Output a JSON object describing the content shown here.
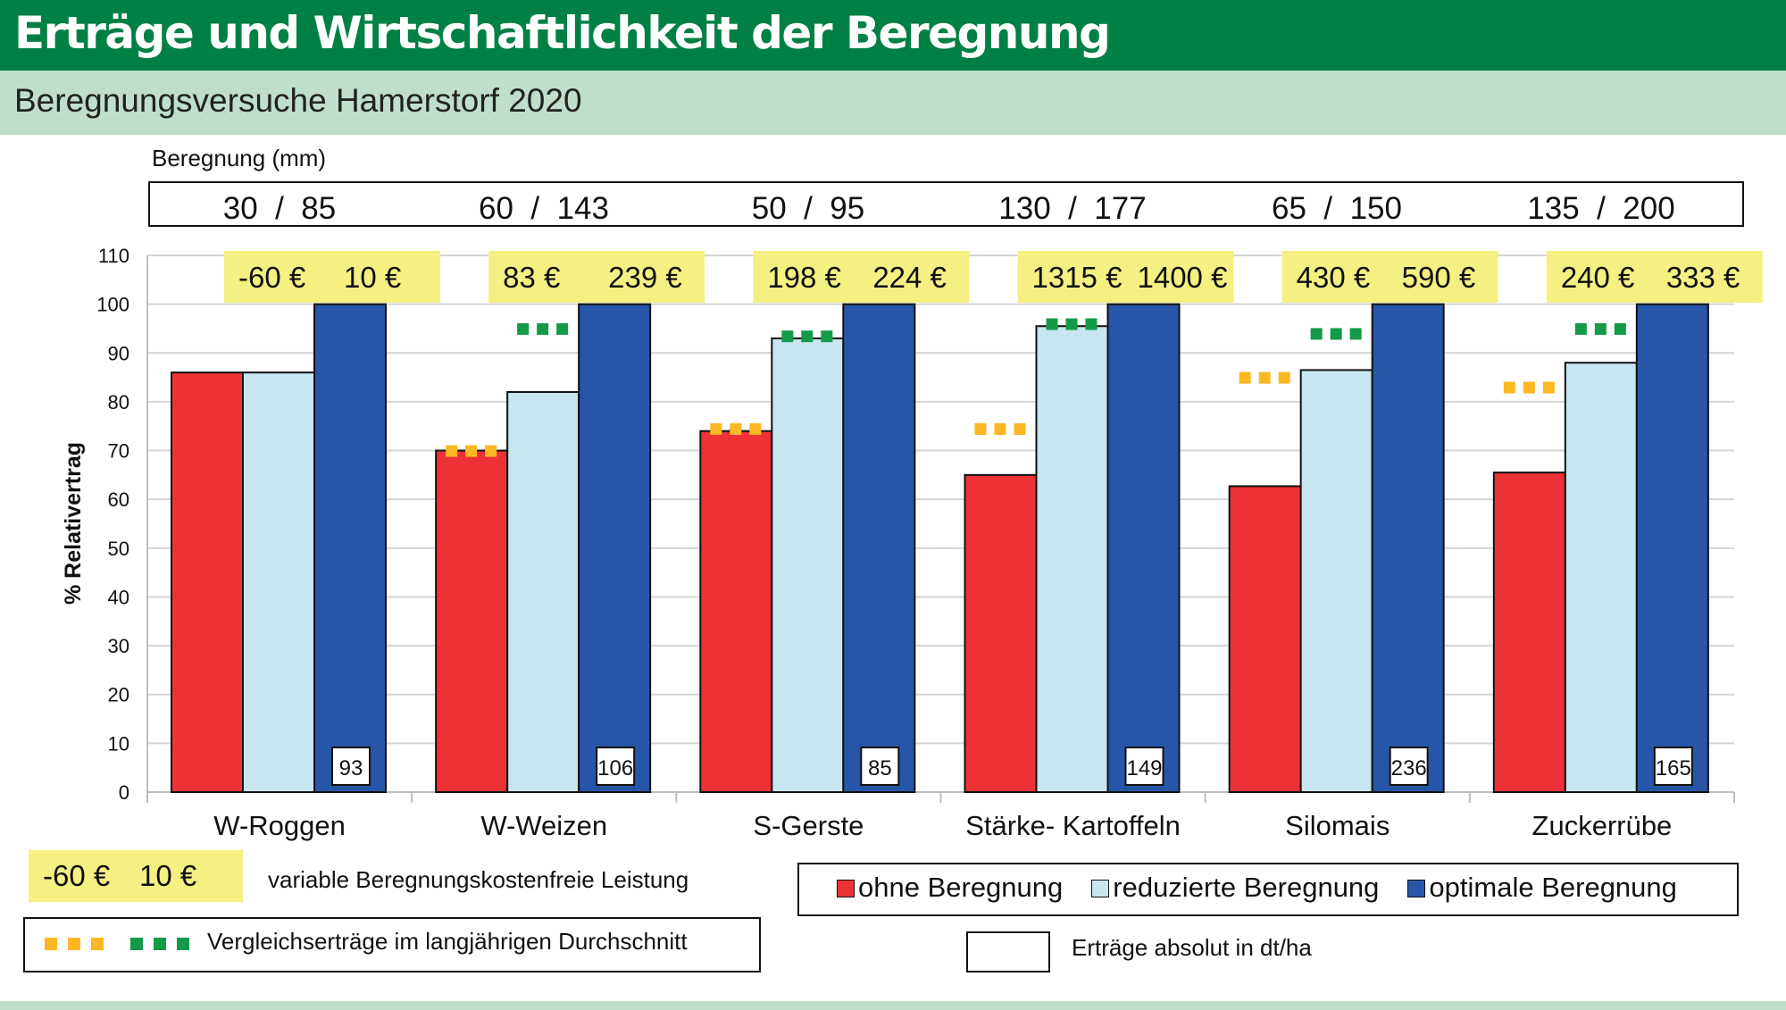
{
  "title": "Erträge und Wirtschaftlichkeit der Beregnung",
  "subtitle": "Beregnungsversuche Hamerstorf 2020",
  "beregnung_label": "Beregnung (mm)",
  "beregnung_values": [
    "30  /  85",
    "60  /  143",
    "50  /  95",
    "130  /  177",
    "65  /  150",
    "135  /  200"
  ],
  "legend": {
    "ohne": "ohne Beregnung",
    "reduziert": "reduzierte Beregnung",
    "optimal": "optimale Beregnung",
    "eur_example_a": "-60 €",
    "eur_example_b": "10 €",
    "eur_text": "variable Beregnungskostenfreie Leistung",
    "vergleich_text": "Vergleichserträge im langjährigen Durchschnitt",
    "absolut_text": "Erträge absolut in dt/ha"
  },
  "colors": {
    "ohne": "#ec3237",
    "reduziert": "#c8e6f0",
    "optimal": "#2756a8",
    "avg_ohne": "#fbb822",
    "avg_reduziert": "#149a48",
    "eur_bg": "#f4f082",
    "header": "#008045",
    "subheader": "#bfdfcc"
  },
  "chart_data": {
    "type": "bar",
    "ylabel": "% Relativertrag",
    "ylim": [
      0,
      110
    ],
    "yticks": [
      0,
      10,
      20,
      30,
      40,
      50,
      60,
      70,
      80,
      90,
      100,
      110
    ],
    "grid": true,
    "categories": [
      "W-Roggen",
      "W-Weizen",
      "S-Gerste",
      "Stärke- Kartoffeln",
      "Silomais",
      "Zuckerrübe"
    ],
    "series": [
      {
        "name": "ohne Beregnung",
        "values": [
          86,
          70,
          74,
          65,
          62.7,
          65.5
        ]
      },
      {
        "name": "reduzierte Beregnung",
        "values": [
          86,
          82,
          93,
          95.5,
          86.5,
          88
        ]
      },
      {
        "name": "optimale Beregnung",
        "values": [
          100,
          100,
          100,
          100,
          100,
          100
        ]
      }
    ],
    "absolute_yield": [
      "93",
      "106",
      "85",
      "149",
      "236",
      "165"
    ],
    "euro_reduziert": [
      "-60 €",
      "83 €",
      "198 €",
      "1315 €",
      "430 €",
      "240 €"
    ],
    "euro_optimal": [
      "10 €",
      "239 €",
      "224 €",
      "1400 €",
      "590 €",
      "333 €"
    ],
    "avg_ohne": [
      null,
      70,
      74.5,
      74.5,
      85,
      83
    ],
    "avg_reduziert": [
      null,
      95,
      93.5,
      96,
      94,
      95
    ]
  }
}
